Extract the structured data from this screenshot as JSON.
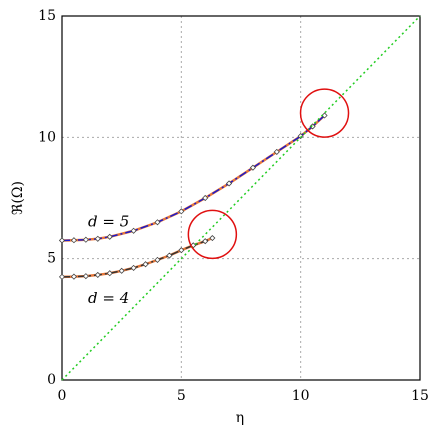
{
  "chart_data": {
    "type": "line",
    "x_label": "η",
    "y_label": "ℜ(Ω)",
    "xlim": [
      0,
      15
    ],
    "ylim": [
      0,
      15
    ],
    "xticks": [
      0,
      5,
      10,
      15
    ],
    "yticks": [
      0,
      5,
      10,
      15
    ],
    "grid": true,
    "series": [
      {
        "color": "#e8783a",
        "line_color": "#1a1acc",
        "x": [
          0,
          0.5,
          1,
          1.5,
          2,
          3,
          4,
          5,
          6,
          7,
          8,
          9,
          10,
          10.5,
          11
        ],
        "values": [
          5.75,
          5.76,
          5.78,
          5.82,
          5.9,
          6.15,
          6.5,
          6.95,
          7.5,
          8.1,
          8.75,
          9.4,
          10.05,
          10.45,
          10.9
        ]
      },
      {
        "color": "#e8783a",
        "line_color": "#333333",
        "x": [
          0,
          0.5,
          1,
          1.5,
          2,
          2.5,
          3,
          3.5,
          4,
          4.5,
          5,
          5.5,
          6,
          6.3
        ],
        "values": [
          4.25,
          4.26,
          4.28,
          4.33,
          4.4,
          4.5,
          4.62,
          4.77,
          4.95,
          5.13,
          5.35,
          5.55,
          5.72,
          5.85
        ]
      },
      {
        "color": "#22cc22",
        "x": [
          0,
          15
        ],
        "values": [
          0,
          15
        ]
      }
    ],
    "highlights": [
      {
        "x": 11,
        "y": 11,
        "color": "#e01010"
      },
      {
        "x": 6.3,
        "y": 6,
        "color": "#e01010"
      }
    ],
    "annotations": [
      "d = 5",
      "d = 4"
    ]
  }
}
